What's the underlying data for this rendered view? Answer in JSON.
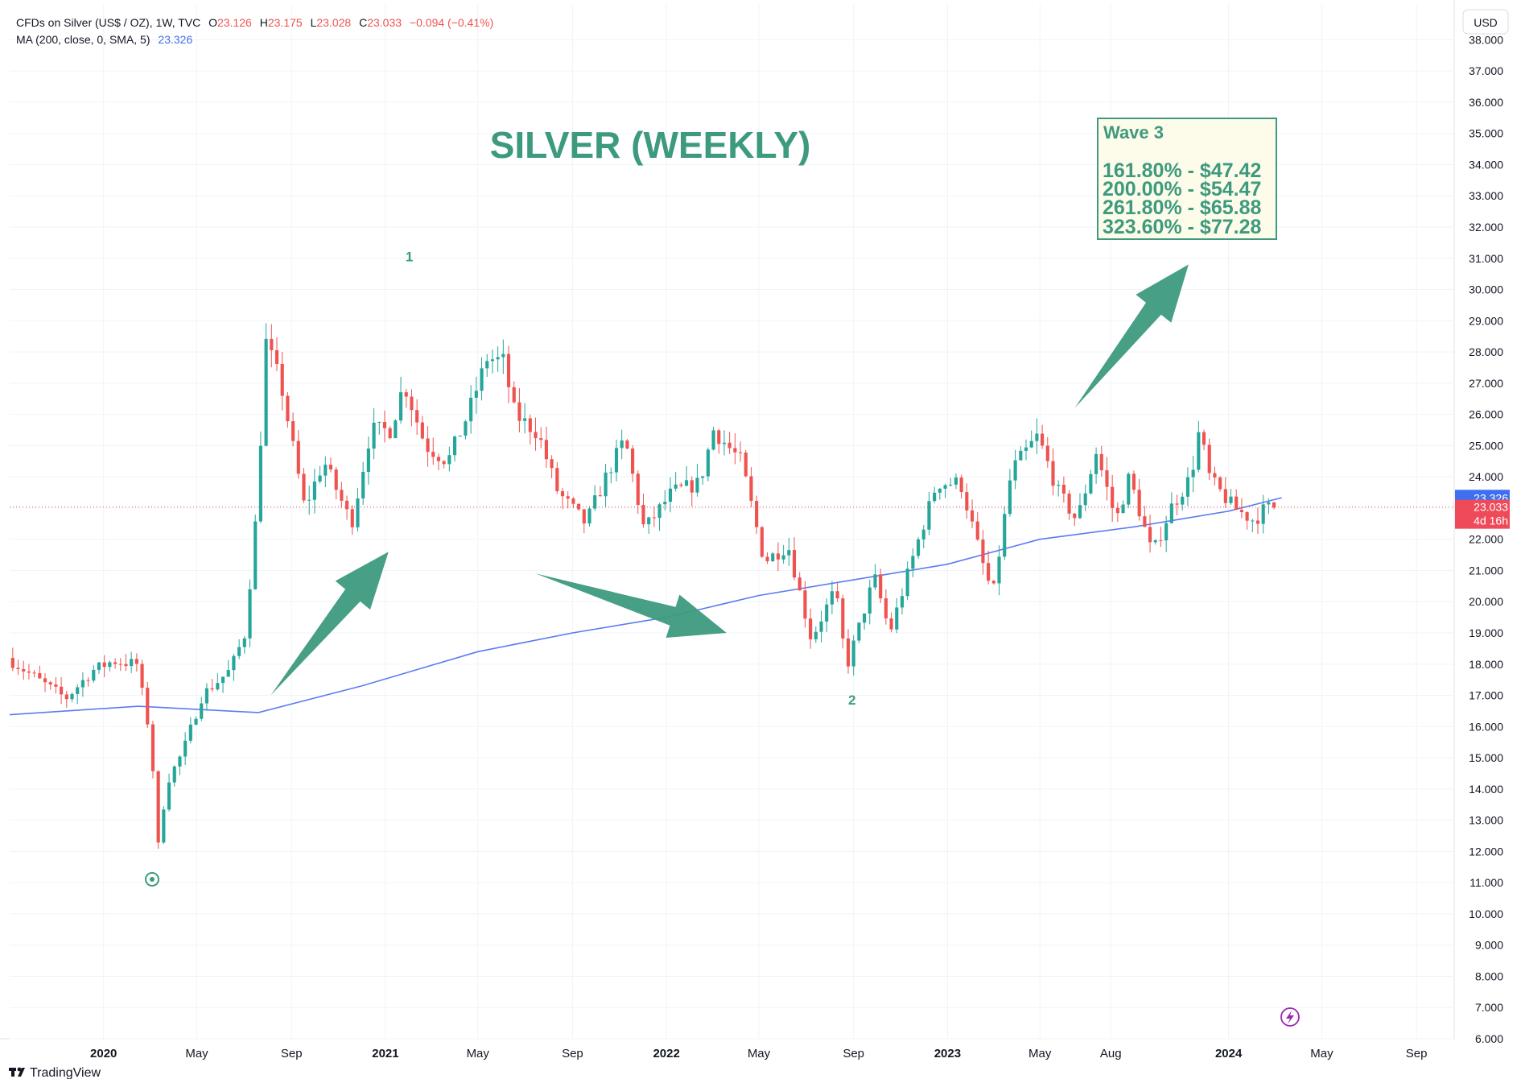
{
  "header": {
    "symbol": "CFDs on Silver (US$ / OZ), 1W, TVC",
    "open_label": "O",
    "open": "23.126",
    "high_label": "H",
    "high": "23.175",
    "low_label": "L",
    "low": "23.028",
    "close_label": "C",
    "close": "23.033",
    "change": "−0.094 (−0.41%)",
    "ma_label": "MA (200, close, 0, SMA, 5)",
    "ma_value": "23.326"
  },
  "currency_button": "USD",
  "branding": "TradingView",
  "colors": {
    "up": "#26a69a",
    "down": "#ef5350",
    "ma": "#5b7cf0",
    "annotation": "#3d9a7e",
    "price_tag": "#ef4a5a",
    "ma_tag": "#3d6ff0"
  },
  "chart_data": {
    "type": "candlestick",
    "title": "SILVER (WEEKLY)",
    "y_axis": {
      "ticks": [
        "6.000",
        "7.000",
        "8.000",
        "9.000",
        "10.000",
        "11.000",
        "12.000",
        "13.000",
        "14.000",
        "15.000",
        "16.000",
        "17.000",
        "18.000",
        "19.000",
        "20.000",
        "21.000",
        "22.000",
        "23.000",
        "24.000",
        "25.000",
        "26.000",
        "27.000",
        "28.000",
        "29.000",
        "30.000",
        "31.000",
        "32.000",
        "33.000",
        "34.000",
        "35.000",
        "36.000",
        "37.000",
        "38.000"
      ],
      "range": [
        6,
        38.5
      ],
      "position": "right"
    },
    "x_axis": {
      "labels": [
        {
          "label": "2020",
          "x": "2020-01-01",
          "year": true
        },
        {
          "label": "May",
          "x": "2020-05-01",
          "year": false
        },
        {
          "label": "Sep",
          "x": "2020-09-01",
          "year": false
        },
        {
          "label": "2021",
          "x": "2021-01-01",
          "year": true
        },
        {
          "label": "May",
          "x": "2021-05-01",
          "year": false
        },
        {
          "label": "Sep",
          "x": "2021-09-01",
          "year": false
        },
        {
          "label": "2022",
          "x": "2022-01-01",
          "year": true
        },
        {
          "label": "May",
          "x": "2022-05-01",
          "year": false
        },
        {
          "label": "Sep",
          "x": "2022-09-01",
          "year": false
        },
        {
          "label": "2023",
          "x": "2023-01-01",
          "year": true
        },
        {
          "label": "May",
          "x": "2023-05-01",
          "year": false
        },
        {
          "label": "Aug",
          "x": "2023-08-01",
          "year": false
        },
        {
          "label": "2024",
          "x": "2024-01-01",
          "year": true
        },
        {
          "label": "May",
          "x": "2024-05-01",
          "year": false
        },
        {
          "label": "Sep",
          "x": "2024-09-01",
          "year": false
        }
      ],
      "range": [
        "2019-09-01",
        "2024-10-20"
      ]
    },
    "grid": true,
    "price_key_points": [
      {
        "date": "2019-09-05",
        "price": 18.2
      },
      {
        "date": "2019-10-15",
        "price": 17.5
      },
      {
        "date": "2019-11-20",
        "price": 16.9
      },
      {
        "date": "2019-12-25",
        "price": 17.8
      },
      {
        "date": "2020-01-20",
        "price": 18.1
      },
      {
        "date": "2020-02-20",
        "price": 18.0
      },
      {
        "date": "2020-03-10",
        "price": 15.5
      },
      {
        "date": "2020-03-18",
        "price": 12.0
      },
      {
        "date": "2020-03-30",
        "price": 14.2
      },
      {
        "date": "2020-04-20",
        "price": 15.2
      },
      {
        "date": "2020-05-15",
        "price": 17.0
      },
      {
        "date": "2020-06-20",
        "price": 17.8
      },
      {
        "date": "2020-07-10",
        "price": 19.0
      },
      {
        "date": "2020-07-25",
        "price": 23.0
      },
      {
        "date": "2020-08-06",
        "price": 28.3
      },
      {
        "date": "2020-08-25",
        "price": 27.0
      },
      {
        "date": "2020-09-25",
        "price": 23.0
      },
      {
        "date": "2020-10-20",
        "price": 24.5
      },
      {
        "date": "2020-11-25",
        "price": 22.5
      },
      {
        "date": "2020-12-20",
        "price": 25.5
      },
      {
        "date": "2021-01-15",
        "price": 25.5
      },
      {
        "date": "2021-02-01",
        "price": 27.0
      },
      {
        "date": "2021-03-01",
        "price": 25.0
      },
      {
        "date": "2021-03-30",
        "price": 24.5
      },
      {
        "date": "2021-04-25",
        "price": 26.0
      },
      {
        "date": "2021-05-20",
        "price": 27.8
      },
      {
        "date": "2021-06-10",
        "price": 27.7
      },
      {
        "date": "2021-06-25",
        "price": 26.0
      },
      {
        "date": "2021-07-25",
        "price": 25.4
      },
      {
        "date": "2021-08-20",
        "price": 23.5
      },
      {
        "date": "2021-09-25",
        "price": 22.5
      },
      {
        "date": "2021-10-25",
        "price": 24.2
      },
      {
        "date": "2021-11-15",
        "price": 25.2
      },
      {
        "date": "2021-12-10",
        "price": 22.3
      },
      {
        "date": "2022-01-15",
        "price": 23.5
      },
      {
        "date": "2022-02-20",
        "price": 23.8
      },
      {
        "date": "2022-03-10",
        "price": 25.5
      },
      {
        "date": "2022-04-15",
        "price": 24.5
      },
      {
        "date": "2022-05-15",
        "price": 21.3
      },
      {
        "date": "2022-06-15",
        "price": 21.8
      },
      {
        "date": "2022-07-15",
        "price": 18.8
      },
      {
        "date": "2022-08-15",
        "price": 20.4
      },
      {
        "date": "2022-08-30",
        "price": 17.9
      },
      {
        "date": "2022-10-05",
        "price": 20.8
      },
      {
        "date": "2022-10-25",
        "price": 19.0
      },
      {
        "date": "2022-11-25",
        "price": 21.5
      },
      {
        "date": "2022-12-25",
        "price": 23.8
      },
      {
        "date": "2023-01-25",
        "price": 23.8
      },
      {
        "date": "2023-02-25",
        "price": 21.0
      },
      {
        "date": "2023-03-08",
        "price": 20.2
      },
      {
        "date": "2023-04-01",
        "price": 24.2
      },
      {
        "date": "2023-05-05",
        "price": 25.3
      },
      {
        "date": "2023-06-01",
        "price": 23.5
      },
      {
        "date": "2023-06-25",
        "price": 22.6
      },
      {
        "date": "2023-07-20",
        "price": 24.8
      },
      {
        "date": "2023-08-15",
        "price": 22.6
      },
      {
        "date": "2023-09-01",
        "price": 24.0
      },
      {
        "date": "2023-10-01",
        "price": 21.5
      },
      {
        "date": "2023-10-25",
        "price": 23.0
      },
      {
        "date": "2023-11-20",
        "price": 24.0
      },
      {
        "date": "2023-12-01",
        "price": 25.5
      },
      {
        "date": "2023-12-15",
        "price": 23.9
      },
      {
        "date": "2024-01-15",
        "price": 23.0
      },
      {
        "date": "2024-02-10",
        "price": 22.6
      },
      {
        "date": "2024-02-25",
        "price": 23.0
      },
      {
        "date": "2024-03-06",
        "price": 23.03
      }
    ],
    "moving_average": {
      "label": "MA (200, close, 0, SMA, 5)",
      "points": [
        {
          "date": "2019-09-01",
          "value": 16.38
        },
        {
          "date": "2020-02-15",
          "value": 16.65
        },
        {
          "date": "2020-07-20",
          "value": 16.45
        },
        {
          "date": "2020-12-01",
          "value": 17.3
        },
        {
          "date": "2021-05-01",
          "value": 18.4
        },
        {
          "date": "2021-09-01",
          "value": 19.0
        },
        {
          "date": "2022-01-01",
          "value": 19.5
        },
        {
          "date": "2022-05-01",
          "value": 20.2
        },
        {
          "date": "2022-09-01",
          "value": 20.7
        },
        {
          "date": "2023-01-01",
          "value": 21.2
        },
        {
          "date": "2023-05-01",
          "value": 22.0
        },
        {
          "date": "2023-09-01",
          "value": 22.4
        },
        {
          "date": "2024-01-01",
          "value": 22.9
        },
        {
          "date": "2024-03-10",
          "value": 23.33
        }
      ]
    },
    "last_price": "23.033",
    "ma_last": "23.326",
    "countdown": "4d 16h",
    "wave_labels": [
      {
        "text": "1",
        "date": "2021-02-01",
        "price": 30.9
      },
      {
        "text": "2",
        "date": "2022-08-30",
        "price": 16.7
      }
    ],
    "arrows": [
      {
        "from": {
          "date": "2020-08-05",
          "price": 17.0
        },
        "to": {
          "date": "2021-01-05",
          "price": 21.6
        }
      },
      {
        "from": {
          "date": "2021-07-15",
          "price": 20.9
        },
        "to": {
          "date": "2022-03-20",
          "price": 19.0
        }
      },
      {
        "from": {
          "date": "2023-06-15",
          "price": 26.2
        },
        "to": {
          "date": "2023-11-10",
          "price": 30.8
        }
      }
    ],
    "wave_box": {
      "title": "Wave 3",
      "lines": [
        "161.80% - $47.42",
        "200.00% - $54.47",
        "261.80% - $65.88",
        "323.60% - $77.28"
      ]
    }
  }
}
